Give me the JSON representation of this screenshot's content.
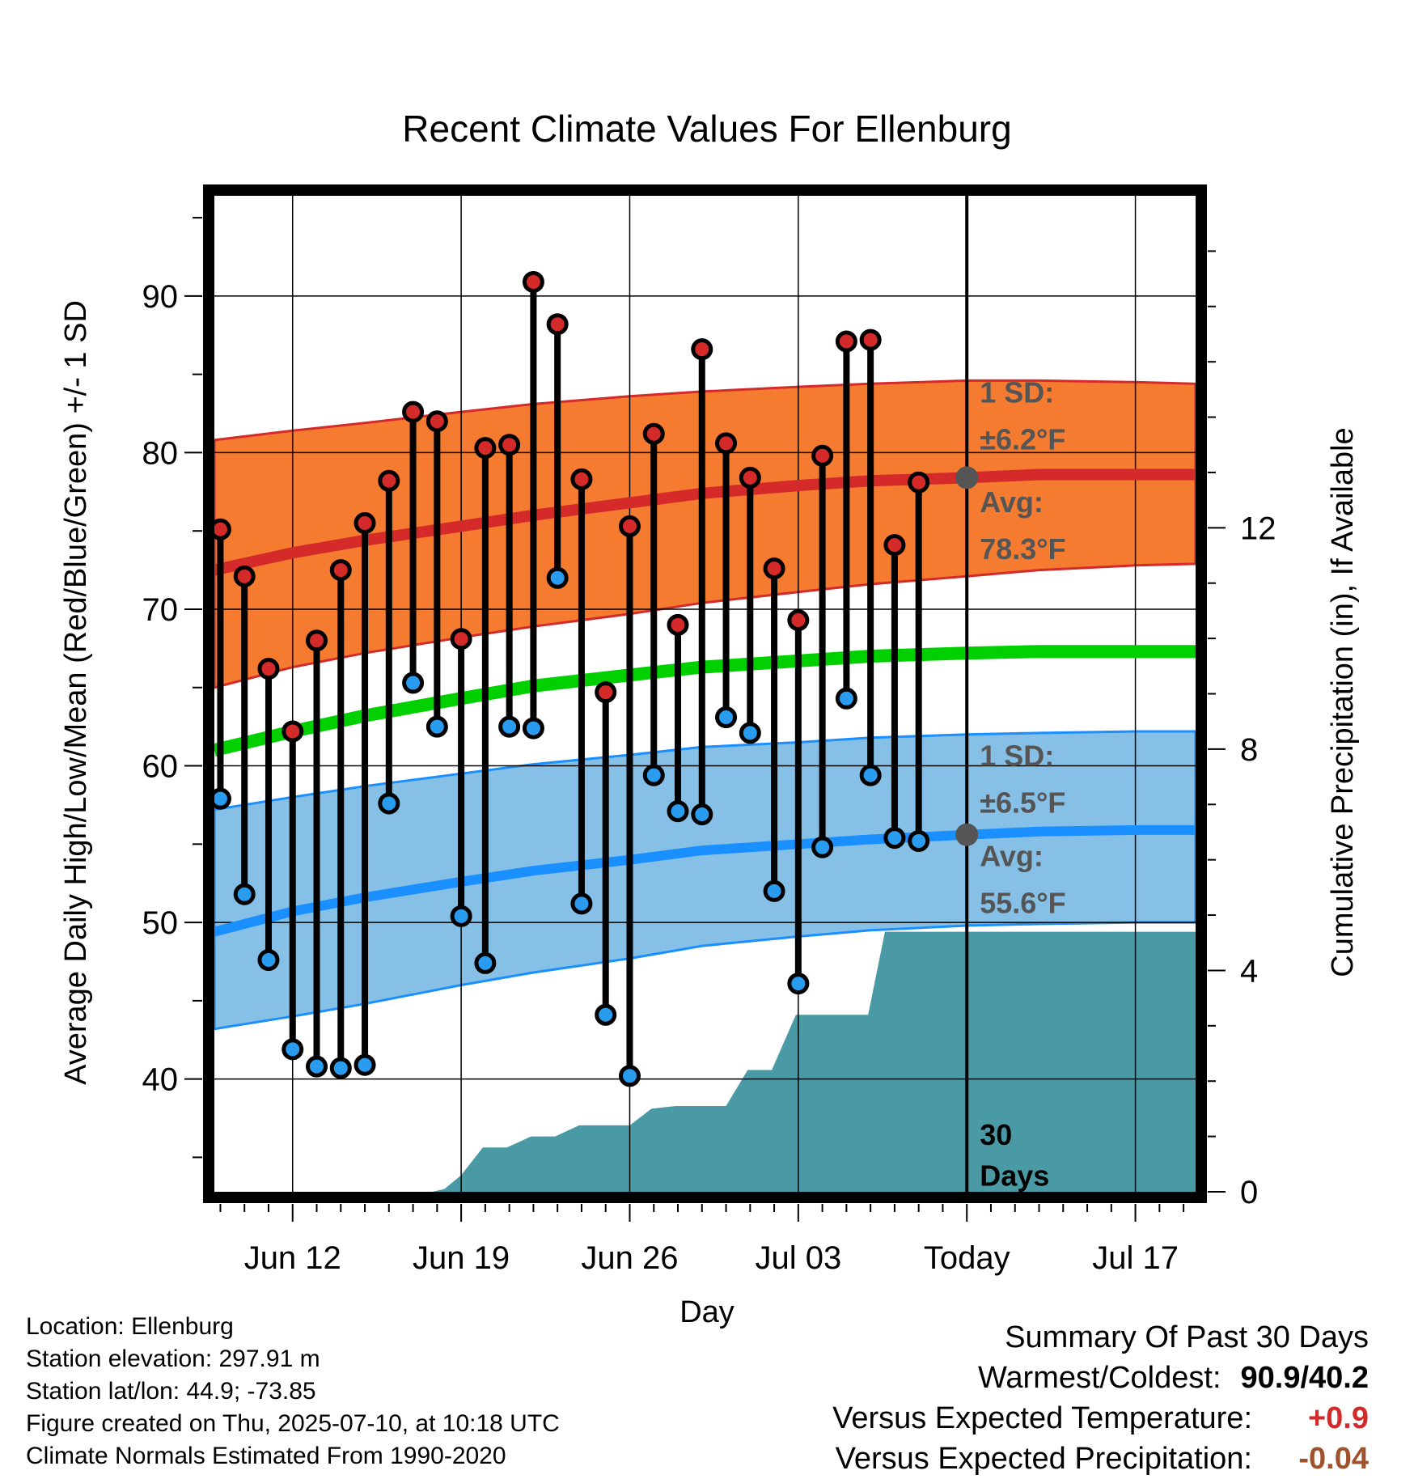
{
  "chart_data": {
    "type": "line",
    "title": "Recent Climate Values For Ellenburg",
    "xlabel": "Day",
    "ylabel": "Average Daily High/Low/Mean (Red/Blue/Green) +/- 1 SD",
    "y2label": "Cumulative Precipitation (in), If Available",
    "x_ticks": [
      "Jun 12",
      "Jun 19",
      "Jun 26",
      "Jul 03",
      "Today",
      "Jul 17"
    ],
    "x_tick_days": [
      12,
      19,
      26,
      33,
      40,
      47
    ],
    "xlim_days": [
      8.75,
      49.5
    ],
    "ylim": [
      32.8,
      96.4
    ],
    "y_ticks": [
      40,
      50,
      60,
      70,
      80,
      90
    ],
    "y_minor_ticks": [
      35,
      45,
      55,
      65,
      75,
      85,
      95
    ],
    "y2lim": [
      0,
      18
    ],
    "y2_ticks": [
      0,
      4,
      8,
      12
    ],
    "today_day": 40,
    "grid": true,
    "normals_days": [
      8.75,
      12,
      15,
      19,
      22,
      26,
      29,
      33,
      36,
      40,
      43,
      47,
      49.5
    ],
    "normal_high": [
      72.5,
      73.6,
      74.4,
      75.3,
      76.0,
      76.8,
      77.4,
      77.9,
      78.2,
      78.4,
      78.6,
      78.6,
      78.6
    ],
    "high_sd_upper": [
      80.8,
      81.4,
      81.9,
      82.6,
      83.1,
      83.6,
      83.9,
      84.2,
      84.4,
      84.6,
      84.6,
      84.5,
      84.4
    ],
    "high_sd_lower": [
      65.0,
      66.3,
      67.2,
      68.2,
      68.9,
      69.7,
      70.4,
      71.1,
      71.6,
      72.1,
      72.5,
      72.8,
      72.9
    ],
    "normal_mean": [
      61.0,
      62.2,
      63.2,
      64.3,
      65.1,
      65.8,
      66.3,
      66.7,
      67.0,
      67.2,
      67.3,
      67.3,
      67.3
    ],
    "normal_low": [
      49.4,
      50.7,
      51.6,
      52.6,
      53.3,
      54.0,
      54.6,
      55.0,
      55.3,
      55.6,
      55.8,
      55.9,
      55.9
    ],
    "low_sd_upper": [
      57.2,
      58.0,
      58.7,
      59.5,
      60.1,
      60.7,
      61.2,
      61.5,
      61.8,
      62.0,
      62.1,
      62.2,
      62.2
    ],
    "low_sd_lower": [
      43.2,
      44.0,
      44.8,
      46.0,
      46.8,
      47.7,
      48.5,
      49.1,
      49.5,
      49.8,
      49.9,
      50.0,
      50.0
    ],
    "days": [
      9,
      10,
      11,
      12,
      13,
      14,
      15,
      16,
      17,
      18,
      19,
      20,
      21,
      22,
      23,
      24,
      25,
      26,
      27,
      28,
      29,
      30,
      31,
      32,
      33,
      34,
      35,
      36,
      37,
      38,
      39
    ],
    "highs": [
      75.1,
      72.1,
      66.2,
      62.2,
      68.0,
      72.5,
      75.5,
      78.2,
      82.6,
      82.0,
      68.1,
      80.3,
      80.5,
      90.9,
      88.2,
      78.3,
      64.7,
      75.3,
      81.2,
      69.0,
      86.6,
      80.6,
      78.4,
      72.6,
      69.3,
      79.8,
      87.1,
      87.2,
      74.1,
      78.1,
      null
    ],
    "lows": [
      57.9,
      51.8,
      47.6,
      41.9,
      40.8,
      40.7,
      40.9,
      57.6,
      65.3,
      62.5,
      50.4,
      47.4,
      62.5,
      62.4,
      72.0,
      51.2,
      44.1,
      40.2,
      59.4,
      57.1,
      56.9,
      63.1,
      62.1,
      52.0,
      46.1,
      54.8,
      64.3,
      59.4,
      55.4,
      55.2,
      null
    ],
    "precip_cumulative": {
      "days": [
        8.75,
        15,
        15.7,
        16.1,
        16.7,
        17.2,
        17.8,
        18.3,
        19.0,
        19.9,
        20.9,
        21.9,
        22.9,
        23.9,
        25.0,
        26.0,
        26.9,
        27.9,
        29.0,
        30.0,
        30.9,
        31.9,
        32.9,
        33.9,
        34.9,
        35.9,
        36.6,
        37.6,
        38.6,
        39.6,
        40.6,
        49.5
      ],
      "values": [
        0,
        0,
        0,
        0,
        0,
        0,
        0,
        0.05,
        0.3,
        0.8,
        0.8,
        1.0,
        1.0,
        1.2,
        1.2,
        1.2,
        1.5,
        1.55,
        1.55,
        1.55,
        2.2,
        2.2,
        3.2,
        3.2,
        3.2,
        3.2,
        4.7,
        4.7,
        4.7,
        4.7,
        4.7,
        4.7
      ]
    },
    "annotations": {
      "high_sd": "1 SD:",
      "high_sd_value": "±6.2°F",
      "high_avg": "Avg:",
      "high_avg_value": "78.3°F",
      "low_sd": "1 SD:",
      "low_sd_value": "±6.5°F",
      "low_avg": "Avg:",
      "low_avg_value": "55.6°F",
      "window_a": "30",
      "window_b": "Days"
    },
    "colors": {
      "high_band": "#f47b30",
      "high_line": "#d42a2a",
      "low_band": "#86c0e6",
      "low_line": "#1a8fff",
      "mean_line": "#00d000",
      "precip": "#4a9aa5",
      "high_marker": "#d42a2a",
      "low_marker": "#2a9cf0",
      "annotation": "#555555"
    }
  },
  "footer": {
    "location": "Location: Ellenburg",
    "elevation": "Station elevation: 297.91 m",
    "latlon": "Station lat/lon: 44.9; -73.85",
    "created": "Figure created on Thu, 2025-07-10, at 10:18 UTC",
    "normals": "Climate Normals Estimated From 1990-2020"
  },
  "summary": {
    "heading": "Summary Of Past 30 Days",
    "warm_cold_label": "Warmest/Coldest:",
    "warm_cold_value": "90.9/40.2",
    "temp_label": "Versus Expected Temperature:",
    "temp_value": "+0.9",
    "temp_color": "#d42a2a",
    "precip_label": "Versus Expected Precipitation:",
    "precip_value": "-0.04",
    "precip_color": "#a0522d"
  }
}
